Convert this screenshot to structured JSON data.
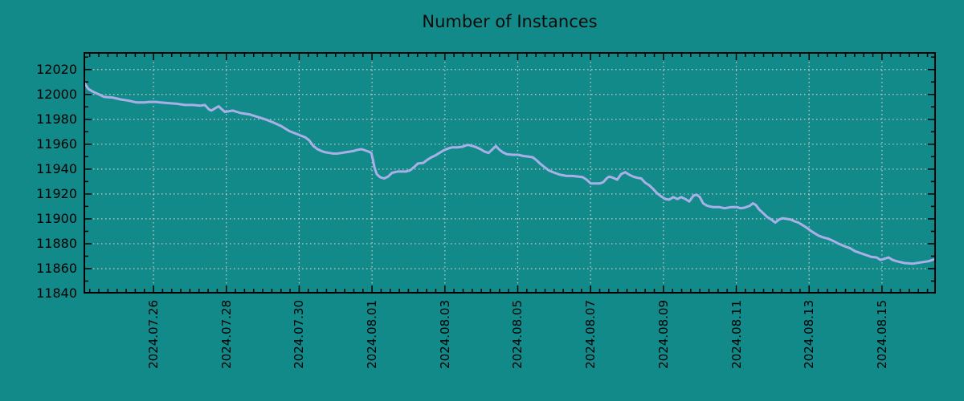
{
  "title": "Number of Instances",
  "colors": {
    "background": "#128a8a",
    "line": "#a9b0e8",
    "grid": "#cccccc",
    "axis": "#000000",
    "text": "#000000"
  },
  "chart_data": {
    "type": "line",
    "title": "Number of Instances",
    "x_unit": "days relative to 2024.07.26",
    "xlim": [
      -1.92,
      21.48
    ],
    "ylim": [
      11840,
      12034
    ],
    "grid": true,
    "legend": "none",
    "y_ticks": [
      11840,
      11860,
      11880,
      11900,
      11920,
      11940,
      11960,
      11980,
      12000,
      12020
    ],
    "y_minor_step": 10,
    "x_minor_step": 0.25,
    "x_ticks": [
      {
        "day": 0,
        "label": "2024.07.26"
      },
      {
        "day": 2,
        "label": "2024.07.28"
      },
      {
        "day": 4,
        "label": "2024.07.30"
      },
      {
        "day": 6,
        "label": "2024.08.01"
      },
      {
        "day": 8,
        "label": "2024.08.03"
      },
      {
        "day": 10,
        "label": "2024.08.05"
      },
      {
        "day": 12,
        "label": "2024.08.07"
      },
      {
        "day": 14,
        "label": "2024.08.09"
      },
      {
        "day": 16,
        "label": "2024.08.11"
      },
      {
        "day": 18,
        "label": "2024.08.13"
      },
      {
        "day": 20,
        "label": "2024.08.15"
      }
    ],
    "series": [
      {
        "name": "Number of Instances",
        "color": "#a9b0e8",
        "points": [
          [
            -1.92,
            12010
          ],
          [
            -1.87,
            12008
          ],
          [
            -1.79,
            12004.5
          ],
          [
            -1.68,
            12002.5
          ],
          [
            -1.57,
            12001
          ],
          [
            -1.46,
            11999.5
          ],
          [
            -1.35,
            11998
          ],
          [
            -1.13,
            11997.5
          ],
          [
            -0.9,
            11996
          ],
          [
            -0.68,
            11995
          ],
          [
            -0.46,
            11993.5
          ],
          [
            -0.24,
            11993.5
          ],
          [
            -0.13,
            11994
          ],
          [
            0,
            11994
          ],
          [
            0.09,
            11994
          ],
          [
            0.2,
            11993.5
          ],
          [
            0.42,
            11993
          ],
          [
            0.64,
            11992.5
          ],
          [
            0.86,
            11991.5
          ],
          [
            1.08,
            11991.5
          ],
          [
            1.3,
            11991
          ],
          [
            1.41,
            11991.5
          ],
          [
            1.52,
            11988
          ],
          [
            1.59,
            11987
          ],
          [
            1.7,
            11989
          ],
          [
            1.79,
            11990.5
          ],
          [
            1.88,
            11988
          ],
          [
            1.96,
            11986
          ],
          [
            2.07,
            11986.5
          ],
          [
            2.18,
            11987
          ],
          [
            2.29,
            11986
          ],
          [
            2.4,
            11985
          ],
          [
            2.63,
            11984
          ],
          [
            2.85,
            11982
          ],
          [
            3.07,
            11980
          ],
          [
            3.29,
            11977.5
          ],
          [
            3.51,
            11974.5
          ],
          [
            3.73,
            11970.5
          ],
          [
            3.95,
            11968
          ],
          [
            4.17,
            11965.5
          ],
          [
            4.28,
            11963
          ],
          [
            4.39,
            11958.5
          ],
          [
            4.5,
            11956
          ],
          [
            4.61,
            11954.5
          ],
          [
            4.72,
            11953.5
          ],
          [
            4.83,
            11953
          ],
          [
            4.94,
            11952.5
          ],
          [
            5.05,
            11952.5
          ],
          [
            5.16,
            11953
          ],
          [
            5.27,
            11953.5
          ],
          [
            5.38,
            11954
          ],
          [
            5.49,
            11954.5
          ],
          [
            5.6,
            11955.5
          ],
          [
            5.71,
            11956
          ],
          [
            5.82,
            11955
          ],
          [
            5.91,
            11954
          ],
          [
            5.98,
            11953
          ],
          [
            6.02,
            11948
          ],
          [
            6.07,
            11941
          ],
          [
            6.13,
            11936
          ],
          [
            6.22,
            11933.5
          ],
          [
            6.33,
            11932.5
          ],
          [
            6.44,
            11934
          ],
          [
            6.55,
            11937
          ],
          [
            6.7,
            11938
          ],
          [
            6.93,
            11938
          ],
          [
            7.04,
            11939
          ],
          [
            7.15,
            11941.5
          ],
          [
            7.26,
            11944.5
          ],
          [
            7.41,
            11945
          ],
          [
            7.52,
            11947.5
          ],
          [
            7.63,
            11949.5
          ],
          [
            7.74,
            11951
          ],
          [
            7.85,
            11953
          ],
          [
            7.96,
            11955
          ],
          [
            8.09,
            11956.5
          ],
          [
            8.2,
            11957.5
          ],
          [
            8.36,
            11957.5
          ],
          [
            8.49,
            11958
          ],
          [
            8.62,
            11959.5
          ],
          [
            8.76,
            11958.5
          ],
          [
            8.87,
            11957.5
          ],
          [
            8.98,
            11956
          ],
          [
            9.09,
            11954
          ],
          [
            9.2,
            11953
          ],
          [
            9.29,
            11955.5
          ],
          [
            9.4,
            11958.5
          ],
          [
            9.48,
            11956
          ],
          [
            9.59,
            11953.5
          ],
          [
            9.7,
            11952
          ],
          [
            9.86,
            11951.5
          ],
          [
            10.01,
            11951.5
          ],
          [
            10.17,
            11950.5
          ],
          [
            10.3,
            11950
          ],
          [
            10.41,
            11949.5
          ],
          [
            10.52,
            11947
          ],
          [
            10.63,
            11944
          ],
          [
            10.74,
            11941.5
          ],
          [
            10.85,
            11939
          ],
          [
            11.01,
            11937
          ],
          [
            11.16,
            11935.5
          ],
          [
            11.34,
            11934.5
          ],
          [
            11.51,
            11934.5
          ],
          [
            11.67,
            11934
          ],
          [
            11.78,
            11933.5
          ],
          [
            11.89,
            11931.5
          ],
          [
            12.0,
            11928.5
          ],
          [
            12.13,
            11928.5
          ],
          [
            12.26,
            11928.5
          ],
          [
            12.35,
            11929.5
          ],
          [
            12.44,
            11932.5
          ],
          [
            12.51,
            11934
          ],
          [
            12.62,
            11933
          ],
          [
            12.73,
            11931.5
          ],
          [
            12.84,
            11936
          ],
          [
            12.95,
            11937.5
          ],
          [
            13.06,
            11935.5
          ],
          [
            13.17,
            11934
          ],
          [
            13.28,
            11933
          ],
          [
            13.39,
            11932.5
          ],
          [
            13.5,
            11929
          ],
          [
            13.61,
            11927
          ],
          [
            13.72,
            11924
          ],
          [
            13.83,
            11920.5
          ],
          [
            13.94,
            11918
          ],
          [
            14.05,
            11916
          ],
          [
            14.16,
            11915.5
          ],
          [
            14.27,
            11917.5
          ],
          [
            14.38,
            11916
          ],
          [
            14.49,
            11917.5
          ],
          [
            14.6,
            11916
          ],
          [
            14.71,
            11914
          ],
          [
            14.82,
            11918.5
          ],
          [
            14.91,
            11919.5
          ],
          [
            15.0,
            11917.5
          ],
          [
            15.09,
            11912.5
          ],
          [
            15.2,
            11910.5
          ],
          [
            15.35,
            11909.5
          ],
          [
            15.53,
            11909.5
          ],
          [
            15.68,
            11908.5
          ],
          [
            15.86,
            11909.5
          ],
          [
            16.01,
            11909.5
          ],
          [
            16.12,
            11908.5
          ],
          [
            16.23,
            11909
          ],
          [
            16.37,
            11910.5
          ],
          [
            16.46,
            11912.5
          ],
          [
            16.54,
            11911
          ],
          [
            16.63,
            11907.5
          ],
          [
            16.74,
            11904.5
          ],
          [
            16.85,
            11901.5
          ],
          [
            16.96,
            11899.5
          ],
          [
            17.07,
            11897
          ],
          [
            17.18,
            11899.5
          ],
          [
            17.27,
            11900.5
          ],
          [
            17.38,
            11900
          ],
          [
            17.49,
            11899.5
          ],
          [
            17.6,
            11898
          ],
          [
            17.71,
            11897
          ],
          [
            17.82,
            11895
          ],
          [
            17.93,
            11893
          ],
          [
            18.04,
            11890.5
          ],
          [
            18.15,
            11888.5
          ],
          [
            18.26,
            11886.5
          ],
          [
            18.4,
            11885
          ],
          [
            18.53,
            11884
          ],
          [
            18.68,
            11882
          ],
          [
            18.81,
            11880
          ],
          [
            18.97,
            11878
          ],
          [
            19.12,
            11876.5
          ],
          [
            19.26,
            11874
          ],
          [
            19.41,
            11872.5
          ],
          [
            19.56,
            11871
          ],
          [
            19.7,
            11869.5
          ],
          [
            19.85,
            11869
          ],
          [
            19.96,
            11867
          ],
          [
            20.07,
            11868
          ],
          [
            20.18,
            11869
          ],
          [
            20.29,
            11867
          ],
          [
            20.4,
            11866
          ],
          [
            20.62,
            11864.5
          ],
          [
            20.84,
            11864
          ],
          [
            21.06,
            11865
          ],
          [
            21.28,
            11866
          ],
          [
            21.44,
            11867.5
          ]
        ]
      }
    ]
  }
}
